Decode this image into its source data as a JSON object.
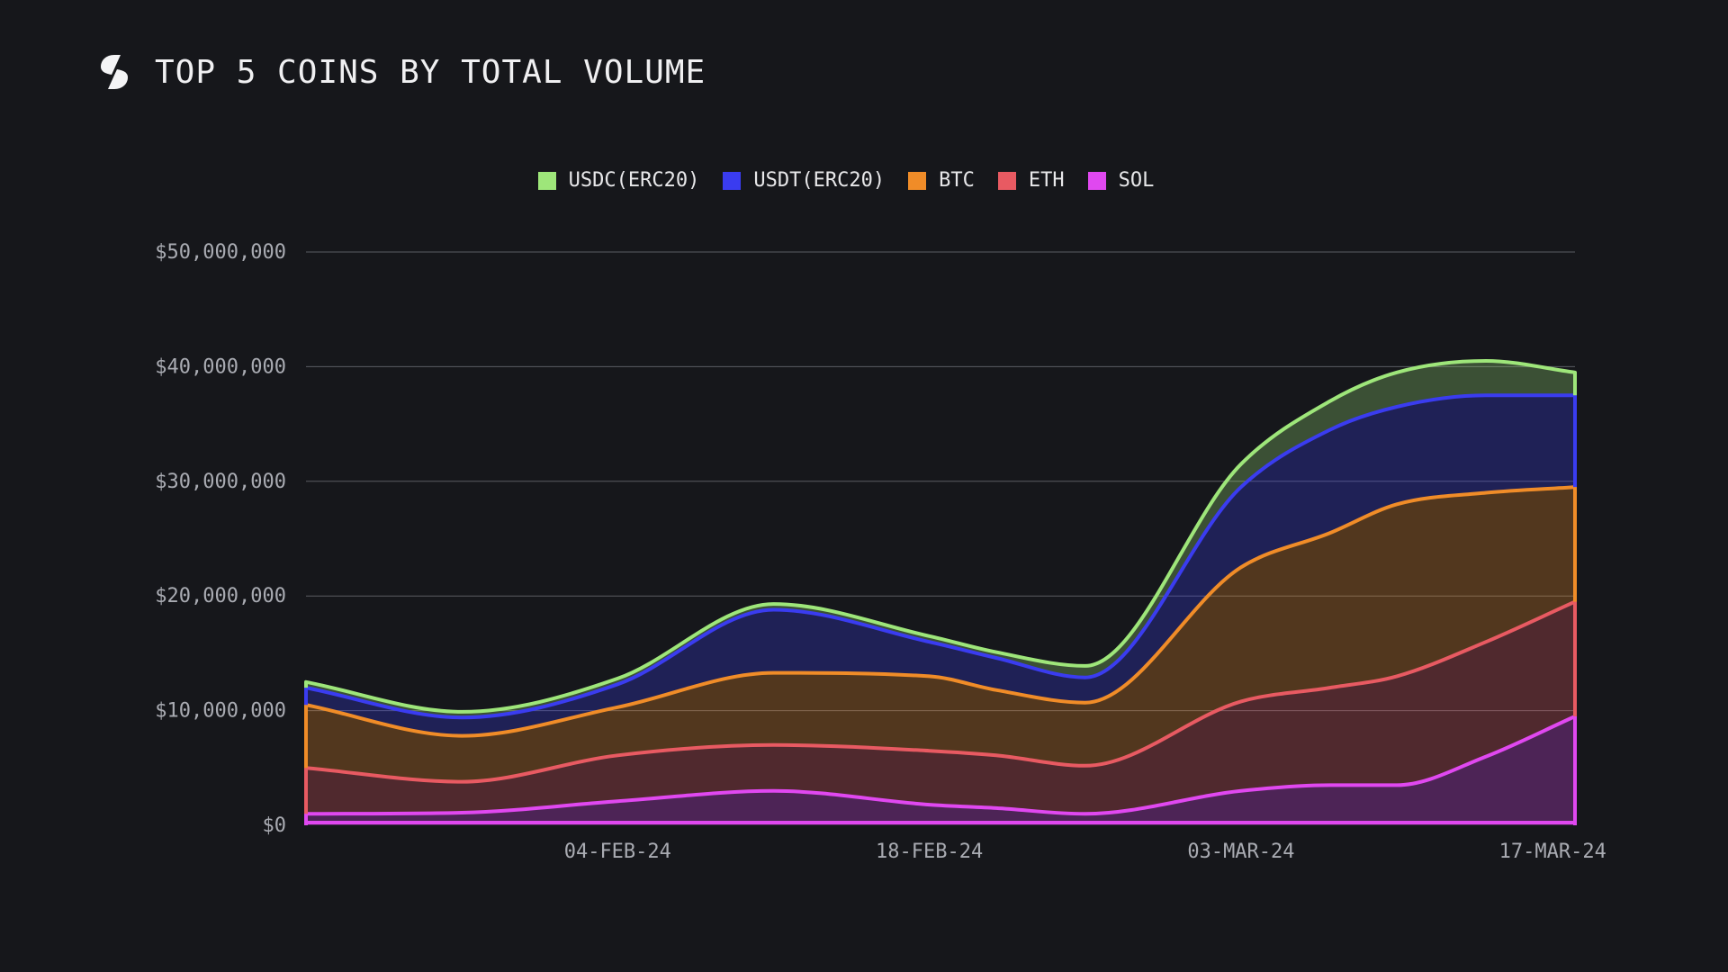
{
  "header": {
    "title": "TOP 5 COINS BY TOTAL VOLUME",
    "logo_icon": "synthetix-s-logo-icon"
  },
  "chart_data": {
    "type": "area",
    "stacked": true,
    "title": "TOP 5 COINS BY TOTAL VOLUME",
    "xlabel": "",
    "ylabel": "",
    "ylim": [
      0,
      50000000
    ],
    "yticks": [
      "$50,000,000",
      "$40,000,000",
      "$30,000,000",
      "$20,000,000",
      "$10,000,000",
      "$0"
    ],
    "ytick_values": [
      50000000,
      40000000,
      30000000,
      20000000,
      10000000,
      0
    ],
    "xticks": [
      "04-FEB-24",
      "18-FEB-24",
      "03-MAR-24",
      "17-MAR-24"
    ],
    "xtick_dates": [
      "2024-02-04",
      "2024-02-18",
      "2024-03-03",
      "2024-03-17"
    ],
    "xlim": [
      "2024-01-21",
      "2024-03-18"
    ],
    "grid": "horizontal",
    "legend_position": "top-center",
    "x": [
      "2024-01-21",
      "2024-01-28",
      "2024-02-04",
      "2024-02-11",
      "2024-02-18",
      "2024-02-21",
      "2024-02-25",
      "2024-03-03",
      "2024-03-07",
      "2024-03-10",
      "2024-03-14",
      "2024-03-18"
    ],
    "series": [
      {
        "name": "SOL",
        "color": "#e048f0",
        "values": [
          1000000,
          1100000,
          2100000,
          3000000,
          1800000,
          1500000,
          1000000,
          3000000,
          3500000,
          3500000,
          6000000,
          9500000
        ]
      },
      {
        "name": "ETH",
        "color": "#e85a62",
        "values": [
          4000000,
          2700000,
          4000000,
          4000000,
          4700000,
          4600000,
          4200000,
          7800000,
          8500000,
          9500000,
          10000000,
          10000000
        ]
      },
      {
        "name": "BTC",
        "color": "#f08c28",
        "values": [
          5500000,
          4000000,
          4200000,
          6300000,
          6500000,
          5700000,
          5500000,
          11700000,
          13500000,
          15000000,
          13000000,
          10000000
        ]
      },
      {
        "name": "USDT(ERC20)",
        "color": "#3a3cf0",
        "values": [
          1500000,
          1600000,
          2000000,
          5500000,
          3000000,
          2800000,
          2200000,
          7000000,
          9000000,
          8500000,
          8500000,
          8000000
        ]
      },
      {
        "name": "USDC(ERC20)",
        "color": "#9ee67a",
        "values": [
          500000,
          500000,
          500000,
          500000,
          500000,
          500000,
          1000000,
          2000000,
          2500000,
          3000000,
          3000000,
          2000000
        ]
      }
    ],
    "legend_order": [
      "USDC(ERC20)",
      "USDT(ERC20)",
      "BTC",
      "ETH",
      "SOL"
    ]
  }
}
